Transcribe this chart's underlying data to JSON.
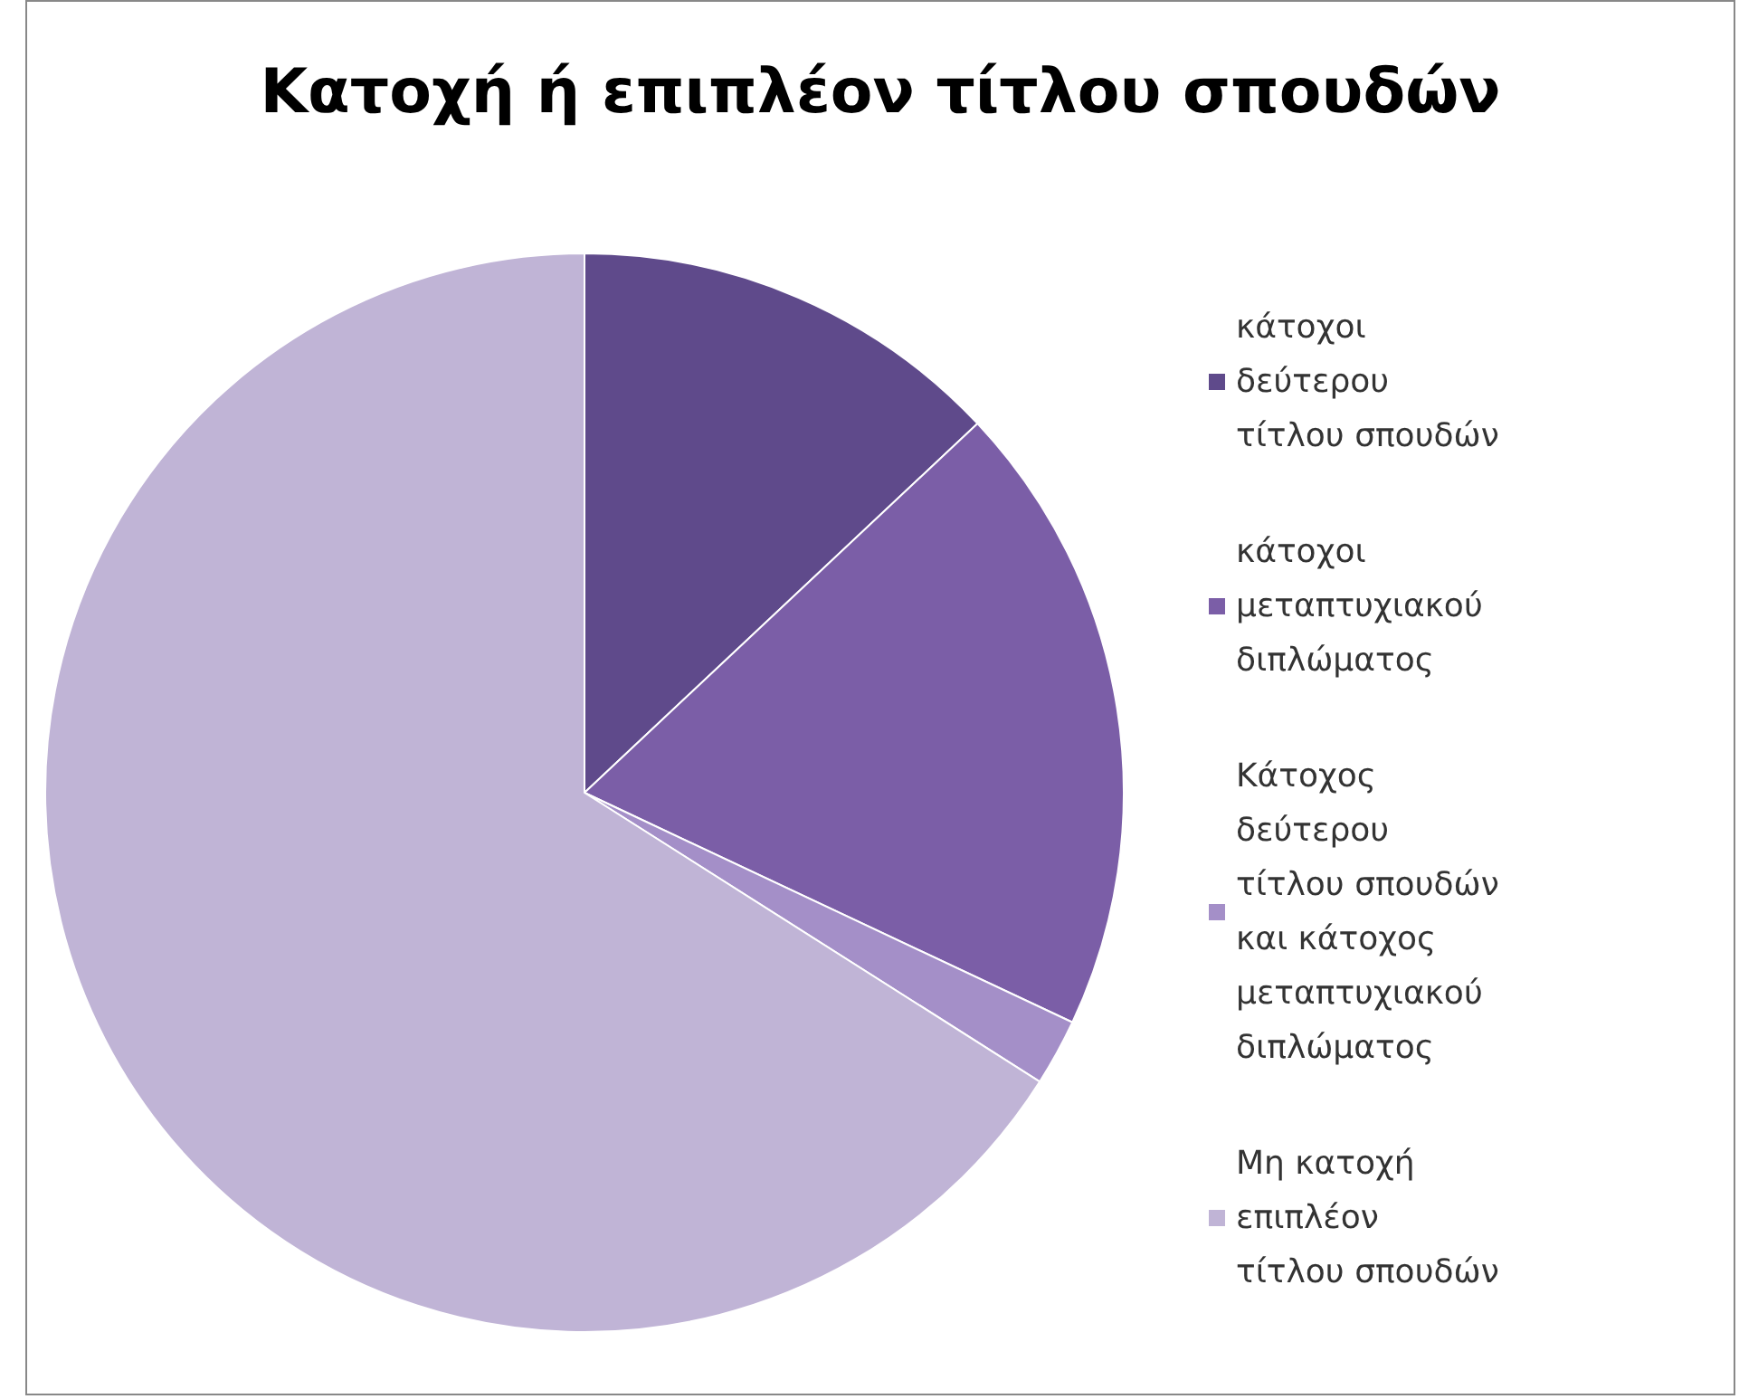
{
  "chart_data": {
    "type": "pie",
    "title": "Κατοχή ή επιπλέον τίτλου σπουδών",
    "categories": [
      "κάτοχοι δεύτερου τίτλου σπουδών",
      "κάτοχοι μεταπτυχιακού διπλώματος",
      "Κάτοχος δεύτερου τίτλου σπουδών και κάτοχος μεταπτυχιακού διπλώματος",
      "Μη κατοχή επιπλέον τίτλου σπουδών"
    ],
    "values": [
      13,
      19,
      2,
      66
    ],
    "colors": [
      "#5f4a8b",
      "#7b5ea7",
      "#a48fc8",
      "#c0b4d6"
    ],
    "legend": "right"
  }
}
